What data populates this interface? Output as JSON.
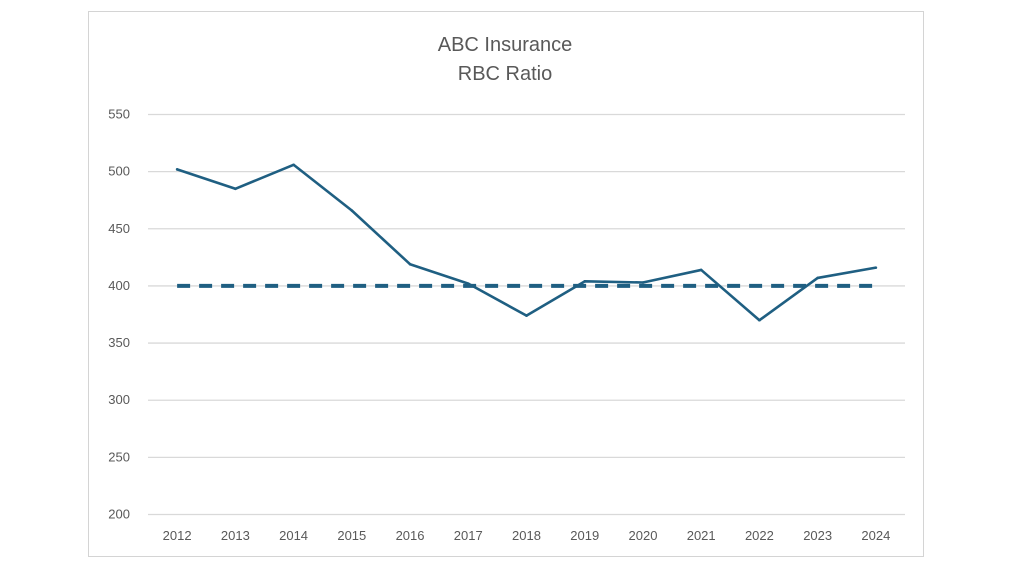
{
  "chart_data": {
    "type": "line",
    "title": [
      "ABC Insurance",
      "RBC Ratio"
    ],
    "categories": [
      "2012",
      "2013",
      "2014",
      "2015",
      "2016",
      "2017",
      "2018",
      "2019",
      "2020",
      "2021",
      "2022",
      "2023",
      "2024"
    ],
    "series": [
      {
        "values": [
          502,
          485,
          506,
          466,
          419,
          402,
          374,
          404,
          403,
          414,
          370,
          407,
          416
        ],
        "color": "#1f5f82",
        "style": "solid"
      },
      {
        "values": [
          400,
          400,
          400,
          400,
          400,
          400,
          400,
          400,
          400,
          400,
          400,
          400,
          400
        ],
        "color": "#1f5f82",
        "style": "dashed"
      }
    ],
    "ylim": [
      200,
      550
    ],
    "yticks": [
      200,
      250,
      300,
      350,
      400,
      450,
      500,
      550
    ],
    "grid": true,
    "legend": "none"
  }
}
